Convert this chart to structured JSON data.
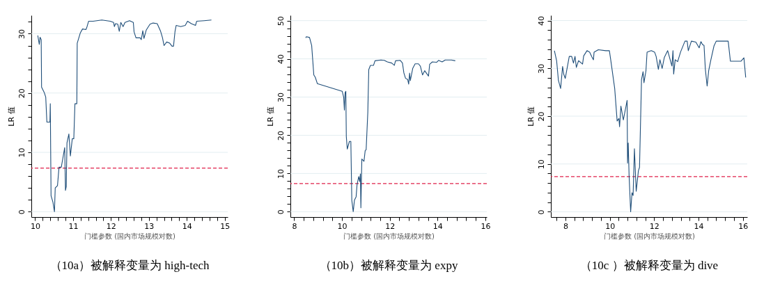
{
  "chart_data": [
    {
      "type": "line",
      "title": "（10a）被解释变量为 high-tech",
      "xlabel": "门槛参数 (国内市场规模对数)",
      "ylabel": "LR 值",
      "grid": "y",
      "x": [
        10.07,
        10.11,
        10.13,
        10.16,
        10.17,
        10.24,
        10.28,
        10.31,
        10.39,
        10.4,
        10.42,
        10.47,
        10.51,
        10.53,
        10.59,
        10.63,
        10.69,
        10.72,
        10.78,
        10.8,
        10.82,
        10.84,
        10.89,
        10.93,
        10.98,
        11.02,
        11.05,
        11.1,
        11.11,
        11.19,
        11.25,
        11.34,
        11.37,
        11.41,
        11.53,
        11.76,
        11.98,
        12.07,
        12.09,
        12.12,
        12.18,
        12.22,
        12.26,
        12.32,
        12.37,
        12.49,
        12.59,
        12.61,
        12.66,
        12.77,
        12.8,
        12.84,
        12.87,
        12.93,
        13.03,
        13.11,
        13.22,
        13.31,
        13.36,
        13.4,
        13.47,
        13.55,
        13.61,
        13.65,
        13.69,
        13.72,
        13.84,
        13.96,
        14.02,
        14.12,
        14.23,
        14.26,
        14.46,
        14.65
      ],
      "series": [
        {
          "color": "#1f4e79",
          "values": [
            29.7,
            28.2,
            29.4,
            29.0,
            21.0,
            20.1,
            19.3,
            15.1,
            15.1,
            18.2,
            2.7,
            1.6,
            0,
            4.0,
            4.4,
            7.5,
            7.5,
            8.6,
            10.8,
            3.6,
            4.2,
            11.6,
            13.1,
            9.4,
            12.3,
            12.3,
            18.2,
            18.2,
            28.4,
            30.1,
            30.8,
            30.7,
            31.2,
            32.1,
            32.1,
            32.3,
            32.1,
            31.9,
            31.2,
            31.7,
            31.6,
            30.4,
            31.9,
            31.2,
            31.9,
            32.2,
            31.9,
            30.3,
            29.3,
            29.3,
            29.0,
            30.5,
            29.2,
            30.6,
            31.6,
            31.8,
            31.7,
            30.4,
            29.3,
            28.0,
            28.6,
            28.4,
            27.9,
            27.9,
            30.4,
            31.4,
            31.2,
            31.4,
            32.1,
            31.7,
            31.4,
            32.1,
            32.2,
            32.3
          ]
        }
      ],
      "xlim": [
        9.9,
        15.08
      ],
      "ylim": [
        -0.9,
        33.1
      ],
      "xticks": [
        10,
        {
          "value": 10.2,
          "label": null
        },
        {
          "value": 10.4,
          "label": null
        },
        {
          "value": 10.6,
          "label": null
        },
        {
          "value": 10.8,
          "label": null
        },
        11,
        {
          "value": 11.2,
          "label": null
        },
        {
          "value": 11.4,
          "label": null
        },
        {
          "value": 11.6,
          "label": null
        },
        {
          "value": 11.8,
          "label": null
        },
        12,
        {
          "value": 12.2,
          "label": null
        },
        {
          "value": 12.4,
          "label": null
        },
        {
          "value": 12.6,
          "label": null
        },
        {
          "value": 12.8,
          "label": null
        },
        13,
        {
          "value": 13.2,
          "label": null
        },
        {
          "value": 13.4,
          "label": null
        },
        {
          "value": 13.6,
          "label": null
        },
        {
          "value": 13.8,
          "label": null
        },
        14,
        {
          "value": 14.2,
          "label": null
        },
        {
          "value": 14.4,
          "label": null
        },
        {
          "value": 14.6,
          "label": null
        },
        {
          "value": 14.8,
          "label": null
        },
        15
      ],
      "yticks": [
        0,
        {
          "value": 2,
          "label": null
        },
        {
          "value": 4,
          "label": null
        },
        {
          "value": 6,
          "label": null
        },
        {
          "value": 8,
          "label": null
        },
        10,
        {
          "value": 12,
          "label": null
        },
        {
          "value": 14,
          "label": null
        },
        {
          "value": 16,
          "label": null
        },
        {
          "value": 18,
          "label": null
        },
        20,
        {
          "value": 22,
          "label": null
        },
        {
          "value": 24,
          "label": null
        },
        {
          "value": 26,
          "label": null
        },
        {
          "value": 28,
          "label": null
        },
        30,
        {
          "value": 32,
          "label": null
        }
      ],
      "ref_lines": [
        {
          "axis": "y",
          "value": 7.35,
          "color": "#e0204a",
          "line_style": "dashed"
        }
      ]
    },
    {
      "type": "line",
      "title": "（10b）被解释变量为 expy",
      "xlabel": "门槛参数 (国内市场规模对数)",
      "ylabel": "LR 值",
      "grid": "y",
      "x": [
        8.48,
        8.51,
        8.64,
        8.73,
        8.82,
        8.88,
        8.97,
        10.01,
        10.07,
        10.1,
        10.13,
        10.16,
        10.18,
        10.22,
        10.31,
        10.37,
        10.41,
        10.47,
        10.52,
        10.59,
        10.63,
        10.7,
        10.74,
        10.77,
        10.79,
        10.83,
        10.92,
        10.97,
        11.01,
        11.08,
        11.12,
        11.19,
        11.32,
        11.38,
        11.63,
        11.77,
        11.9,
        12.08,
        12.19,
        12.24,
        12.44,
        12.53,
        12.59,
        12.66,
        12.75,
        12.79,
        12.83,
        12.86,
        12.96,
        13.06,
        13.2,
        13.28,
        13.37,
        13.46,
        13.62,
        13.67,
        13.78,
        13.96,
        14.04,
        14.19,
        14.32,
        14.58,
        14.74
      ],
      "series": [
        {
          "color": "#1f4e79",
          "values": [
            45.5,
            45.8,
            45.6,
            43.5,
            35.8,
            35.2,
            33.5,
            31.5,
            30.0,
            26.6,
            31.2,
            31.5,
            19.7,
            16.4,
            18.4,
            18.4,
            3.0,
            0,
            3.0,
            3.9,
            7.1,
            9.2,
            7.9,
            9.9,
            1.0,
            13.8,
            13.2,
            16.0,
            16.2,
            26.0,
            37.2,
            38.3,
            38.3,
            39.5,
            39.7,
            39.6,
            39.2,
            38.9,
            38.3,
            39.5,
            39.6,
            38.9,
            36.3,
            34.9,
            34.6,
            33.4,
            36.3,
            34.3,
            37.5,
            38.7,
            38.7,
            38.1,
            35.8,
            36.9,
            35.5,
            38.6,
            39.2,
            39.1,
            39.6,
            39.2,
            39.7,
            39.7,
            39.5
          ]
        }
      ],
      "xlim": [
        7.84,
        16.06
      ],
      "ylim": [
        -1.4,
        51.4
      ],
      "xticks": [
        8,
        {
          "value": 8.4,
          "label": null
        },
        {
          "value": 8.8,
          "label": null
        },
        {
          "value": 9.2,
          "label": null
        },
        {
          "value": 9.6,
          "label": null
        },
        10,
        {
          "value": 10.4,
          "label": null
        },
        {
          "value": 10.8,
          "label": null
        },
        {
          "value": 11.2,
          "label": null
        },
        {
          "value": 11.6,
          "label": null
        },
        12,
        {
          "value": 12.4,
          "label": null
        },
        {
          "value": 12.8,
          "label": null
        },
        {
          "value": 13.2,
          "label": null
        },
        {
          "value": 13.6,
          "label": null
        },
        14,
        {
          "value": 14.4,
          "label": null
        },
        {
          "value": 14.8,
          "label": null
        },
        {
          "value": 15.2,
          "label": null
        },
        {
          "value": 15.6,
          "label": null
        },
        16
      ],
      "yticks": [
        0,
        {
          "value": 2,
          "label": null
        },
        {
          "value": 4,
          "label": null
        },
        {
          "value": 6,
          "label": null
        },
        {
          "value": 8,
          "label": null
        },
        10,
        {
          "value": 12,
          "label": null
        },
        {
          "value": 14,
          "label": null
        },
        {
          "value": 16,
          "label": null
        },
        {
          "value": 18,
          "label": null
        },
        20,
        {
          "value": 22,
          "label": null
        },
        {
          "value": 24,
          "label": null
        },
        {
          "value": 26,
          "label": null
        },
        {
          "value": 28,
          "label": null
        },
        30,
        {
          "value": 32,
          "label": null
        },
        {
          "value": 34,
          "label": null
        },
        {
          "value": 36,
          "label": null
        },
        {
          "value": 38,
          "label": null
        },
        40,
        {
          "value": 42,
          "label": null
        },
        {
          "value": 44,
          "label": null
        },
        {
          "value": 46,
          "label": null
        },
        {
          "value": 48,
          "label": null
        },
        50
      ],
      "ref_lines": [
        {
          "axis": "y",
          "value": 7.35,
          "color": "#e0204a",
          "line_style": "dashed"
        }
      ]
    },
    {
      "type": "line",
      "title": "（10c ）被解释变量为 dive",
      "xlabel": "门槛参数 (国内市场规模对数)",
      "ylabel": "LR 值",
      "grid": "y",
      "x": [
        7.5,
        7.6,
        7.68,
        7.78,
        7.87,
        7.92,
        7.99,
        8.17,
        8.28,
        8.36,
        8.43,
        8.49,
        8.59,
        8.77,
        8.82,
        8.97,
        9.09,
        9.19,
        9.26,
        9.29,
        9.48,
        9.82,
        9.98,
        10.04,
        10.22,
        10.33,
        10.41,
        10.44,
        10.5,
        10.61,
        10.78,
        10.8,
        10.83,
        10.87,
        10.94,
        11.0,
        11.05,
        11.11,
        11.19,
        11.29,
        11.34,
        11.43,
        11.5,
        11.54,
        11.63,
        11.68,
        11.87,
        12.02,
        12.09,
        12.19,
        12.26,
        12.36,
        12.46,
        12.61,
        12.8,
        12.85,
        12.88,
        12.95,
        13.06,
        13.19,
        13.39,
        13.49,
        13.54,
        13.68,
        13.88,
        14.03,
        14.11,
        14.18,
        14.25,
        14.31,
        14.39,
        14.46,
        14.56,
        14.7,
        14.8,
        15.34,
        15.44,
        15.92,
        16.05,
        16.13
      ],
      "series": [
        {
          "color": "#1f4e79",
          "values": [
            33.7,
            31.6,
            27.5,
            25.8,
            30.4,
            28.8,
            27.9,
            32.5,
            32.5,
            31.1,
            32.5,
            30.2,
            31.6,
            30.9,
            32.6,
            33.7,
            33.4,
            32.4,
            31.8,
            33.4,
            33.9,
            33.7,
            33.7,
            31.8,
            25.8,
            19.0,
            19.5,
            17.8,
            22.1,
            19.2,
            23.3,
            10.2,
            14.4,
            7.5,
            0,
            4.0,
            3.4,
            13.2,
            4.3,
            8.6,
            9.3,
            27.7,
            29.3,
            27.0,
            29.5,
            33.4,
            33.7,
            33.4,
            32.5,
            29.8,
            31.8,
            30.0,
            32.3,
            33.7,
            30.5,
            33.7,
            28.8,
            31.8,
            31.4,
            33.4,
            35.7,
            35.7,
            33.7,
            35.7,
            35.5,
            34.3,
            35.6,
            35.0,
            34.8,
            29.8,
            26.3,
            29.5,
            31.8,
            34.7,
            35.7,
            35.7,
            31.5,
            31.5,
            32.2,
            28.1
          ]
        }
      ],
      "xlim": [
        7.34,
        16.2
      ],
      "ylim": [
        -1.1,
        41.1
      ],
      "xticks": [
        {
          "value": 7.6,
          "label": null
        },
        8,
        {
          "value": 8.4,
          "label": null
        },
        {
          "value": 8.8,
          "label": null
        },
        {
          "value": 9.2,
          "label": null
        },
        {
          "value": 9.6,
          "label": null
        },
        10,
        {
          "value": 10.4,
          "label": null
        },
        {
          "value": 10.8,
          "label": null
        },
        {
          "value": 11.2,
          "label": null
        },
        {
          "value": 11.6,
          "label": null
        },
        12,
        {
          "value": 12.4,
          "label": null
        },
        {
          "value": 12.8,
          "label": null
        },
        {
          "value": 13.2,
          "label": null
        },
        {
          "value": 13.6,
          "label": null
        },
        14,
        {
          "value": 14.4,
          "label": null
        },
        {
          "value": 14.8,
          "label": null
        },
        {
          "value": 15.2,
          "label": null
        },
        {
          "value": 15.6,
          "label": null
        },
        16
      ],
      "yticks": [
        0,
        {
          "value": 2,
          "label": null
        },
        {
          "value": 4,
          "label": null
        },
        {
          "value": 6,
          "label": null
        },
        {
          "value": 8,
          "label": null
        },
        10,
        {
          "value": 12,
          "label": null
        },
        {
          "value": 14,
          "label": null
        },
        {
          "value": 16,
          "label": null
        },
        {
          "value": 18,
          "label": null
        },
        20,
        {
          "value": 22,
          "label": null
        },
        {
          "value": 24,
          "label": null
        },
        {
          "value": 26,
          "label": null
        },
        {
          "value": 28,
          "label": null
        },
        30,
        {
          "value": 32,
          "label": null
        },
        {
          "value": 34,
          "label": null
        },
        {
          "value": 36,
          "label": null
        },
        {
          "value": 38,
          "label": null
        },
        40
      ],
      "ref_lines": [
        {
          "axis": "y",
          "value": 7.35,
          "color": "#e0204a",
          "line_style": "dashed"
        }
      ]
    }
  ]
}
